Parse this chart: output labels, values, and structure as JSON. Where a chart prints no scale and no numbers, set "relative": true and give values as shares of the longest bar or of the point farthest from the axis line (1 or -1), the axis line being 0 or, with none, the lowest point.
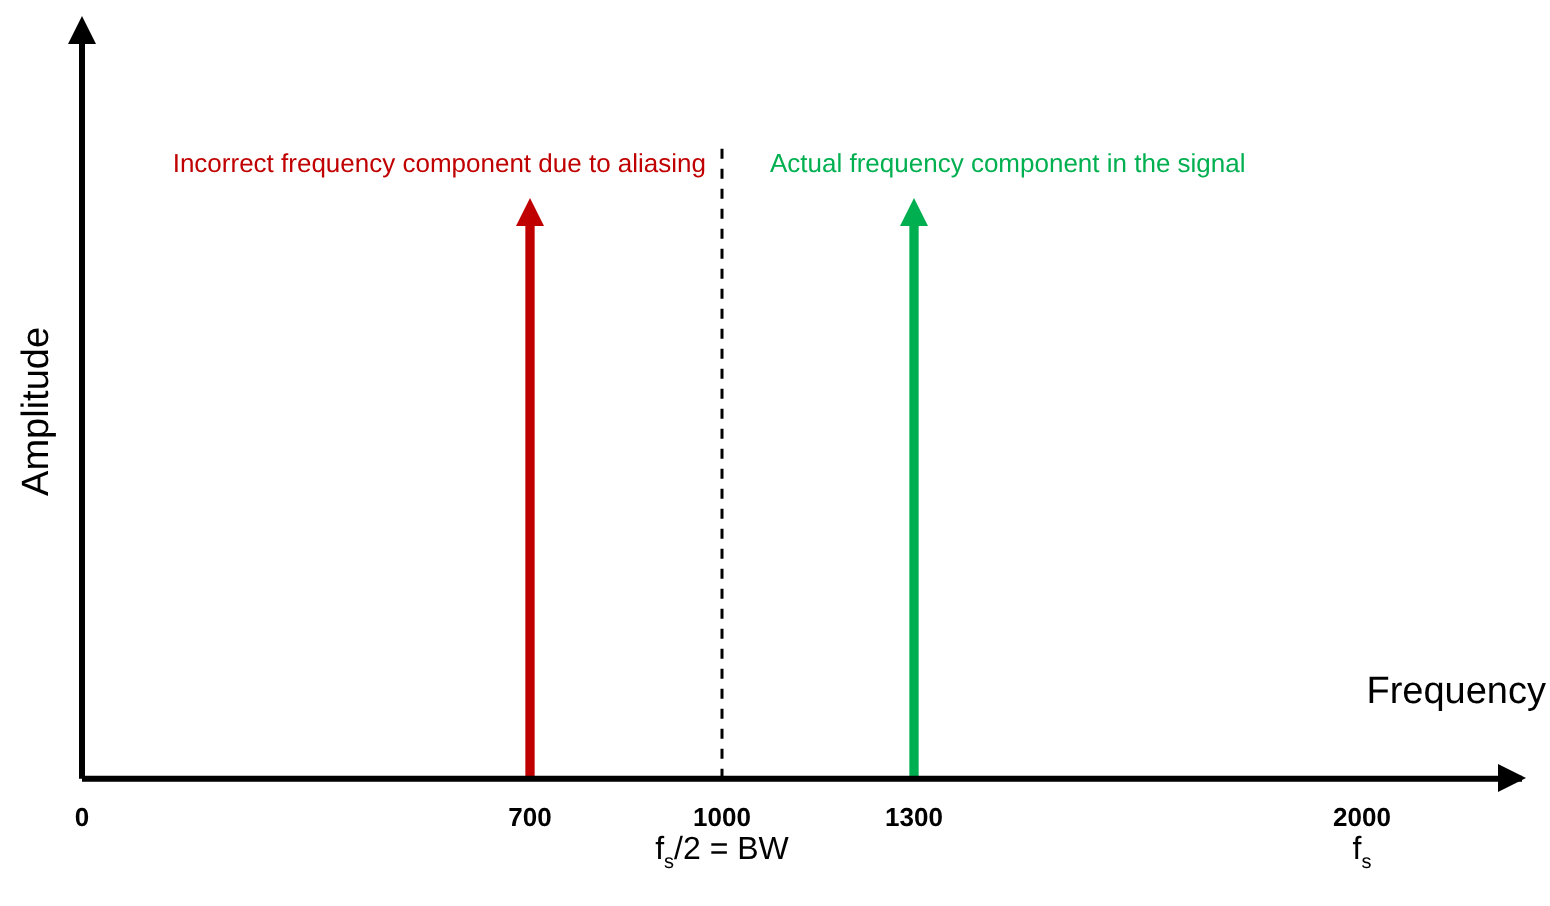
{
  "chart_data": {
    "type": "bar",
    "relative": true,
    "xlabel": "Frequency",
    "ylabel": "Amplitude",
    "xlim": [
      0,
      2250
    ],
    "xticks": [
      0,
      700,
      1000,
      1300,
      2000
    ],
    "x": [
      700,
      1300
    ],
    "values": [
      1,
      1
    ],
    "colors": [
      "#c00000",
      "#00b050"
    ],
    "grid": false,
    "legend": false,
    "ref_lines": [
      {
        "axis": "x",
        "value": 1000,
        "color": "#000000",
        "line_style": "dashed"
      }
    ],
    "annotations": [
      "Incorrect frequency component due to aliasing",
      "Actual frequency component in the signal",
      "f$_{s}$/2 = BW",
      "f$_{s}$"
    ]
  }
}
